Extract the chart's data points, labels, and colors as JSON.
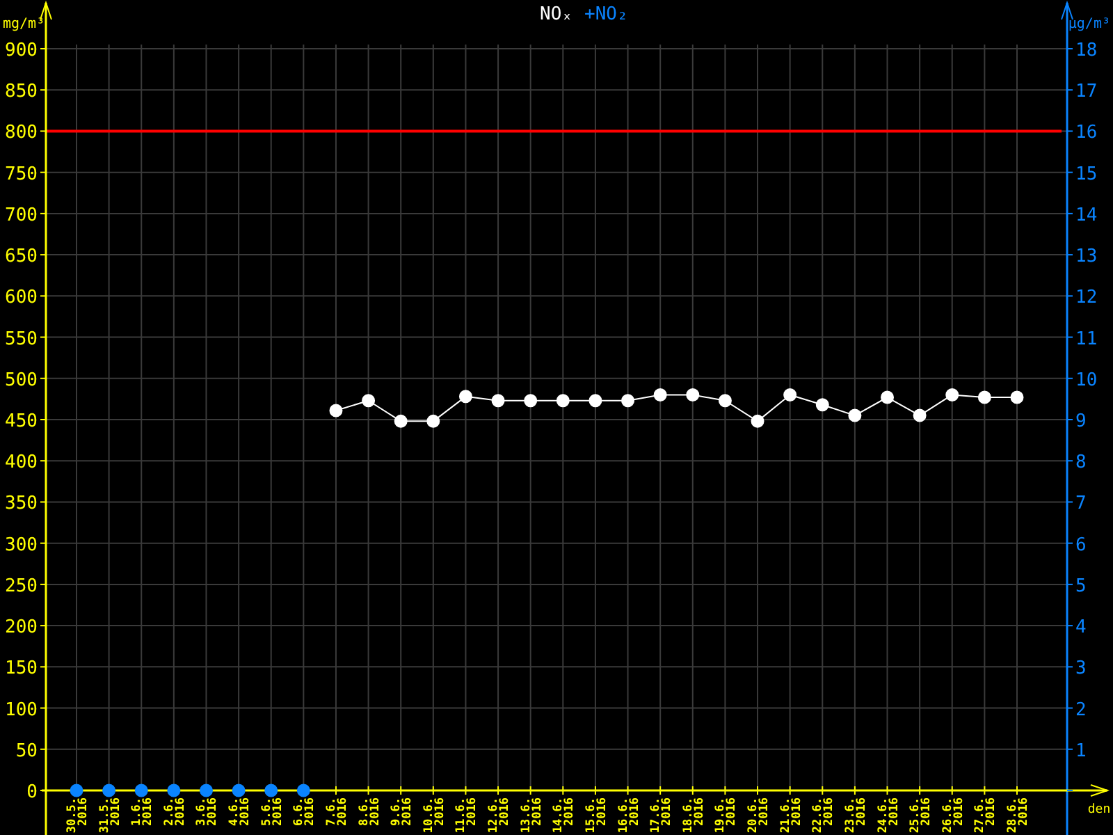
{
  "chart_data": {
    "type": "line",
    "ylabel": "mg/m³",
    "y2label": "μg/m³",
    "xlabel": "den",
    "categories": [
      "30.5. 2016",
      "31.5. 2016",
      "1.6. 2016",
      "2.6. 2016",
      "3.6. 2016",
      "4.6. 2016",
      "5.6. 2016",
      "6.6. 2016",
      "7.6. 2016",
      "8.6. 2016",
      "9.6. 2016",
      "10.6. 2016",
      "11.6. 2016",
      "12.6. 2016",
      "13.6. 2016",
      "14.6. 2016",
      "15.6. 2016",
      "16.6. 2016",
      "17.6. 2016",
      "18.6. 2016",
      "19.6. 2016",
      "20.6. 2016",
      "21.6. 2016",
      "22.6. 2016",
      "23.6. 2016",
      "24.6. 2016",
      "25.6. 2016",
      "26.6. 2016",
      "27.6. 2016",
      "28.6. 2016"
    ],
    "series": [
      {
        "name": "NOₓ",
        "color": "#ffffff",
        "values": [
          null,
          null,
          null,
          null,
          null,
          null,
          null,
          null,
          461,
          473,
          448,
          448,
          478,
          473,
          473,
          473,
          473,
          473,
          480,
          480,
          473,
          448,
          480,
          468,
          455,
          477,
          455,
          480,
          477,
          477
        ]
      },
      {
        "name": "+NO₂",
        "type": "scatter",
        "color": "#0a84ff",
        "values": [
          0,
          0,
          0,
          0,
          0,
          0,
          0,
          0,
          null,
          null,
          null,
          null,
          null,
          null,
          null,
          null,
          null,
          null,
          null,
          null,
          null,
          null,
          null,
          null,
          null,
          null,
          null,
          null,
          null,
          null
        ]
      }
    ],
    "ylim": [
      0,
      900
    ],
    "yticks": [
      0,
      50,
      100,
      150,
      200,
      250,
      300,
      350,
      400,
      450,
      500,
      550,
      600,
      650,
      700,
      750,
      800,
      850,
      900
    ],
    "y2lim": [
      0,
      18
    ],
    "y2ticks": [
      {
        "value": 0,
        "label": null
      },
      1,
      2,
      3,
      4,
      5,
      6,
      7,
      8,
      9,
      10,
      11,
      12,
      13,
      14,
      15,
      16,
      17,
      18
    ],
    "ref_lines": [
      {
        "axis": "y",
        "value": 800,
        "color": "#ff0000"
      }
    ],
    "grid": true,
    "legend": "top",
    "marker": "circle",
    "line_style": "solid"
  }
}
